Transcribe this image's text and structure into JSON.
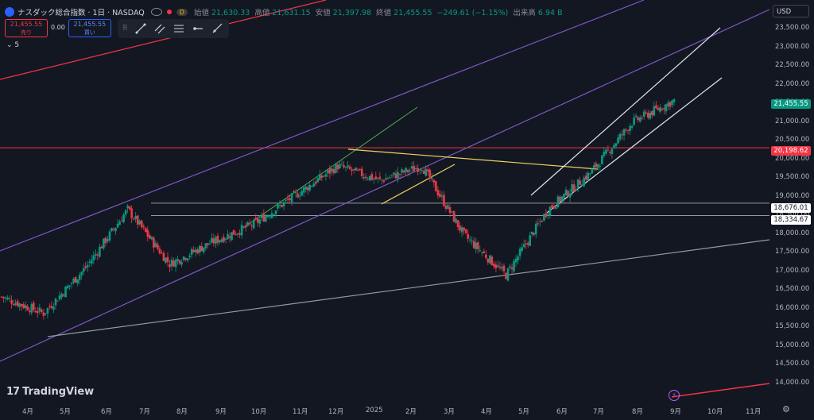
{
  "header": {
    "title": "ナスダック総合指数 · 1日 · NASDAQ",
    "badge": "D",
    "open_label": "始値",
    "open": "21,630.33",
    "high_label": "高値",
    "high": "21,631.15",
    "low_label": "安値",
    "low": "21,397.98",
    "close_label": "終値",
    "close": "21,455.55",
    "change": "−249.61 (−1.15%)",
    "volume_label": "出来高",
    "volume": "6.94 B"
  },
  "trade": {
    "sell_price": "21,455.55",
    "sell_label": "売り",
    "spread": "0.00",
    "buy_price": "21,455.55",
    "buy_label": "買い"
  },
  "indicator_collapse": "5",
  "currency": "USD",
  "y_axis_labels": [
    "23,500.00",
    "23,000.00",
    "22,500.00",
    "22,000.00",
    "21,500.00",
    "21,000.00",
    "20,500.00",
    "20,000.00",
    "19,500.00",
    "19,000.00",
    "18,500.00",
    "18,000.00",
    "17,500.00",
    "17,000.00",
    "16,500.00",
    "16,000.00",
    "15,500.00",
    "15,000.00",
    "14,500.00",
    "14,000.00"
  ],
  "x_axis_labels": [
    "4月",
    "5月",
    "6月",
    "7月",
    "8月",
    "9月",
    "10月",
    "11月",
    "12月",
    "2025",
    "2月",
    "3月",
    "4月",
    "5月",
    "6月",
    "7月",
    "8月",
    "9月",
    "10月",
    "11月"
  ],
  "price_badges": {
    "last": "21,455.55",
    "resistance": "20,198.62",
    "level1": "18,676.01",
    "level2": "18,334.67"
  },
  "brand": "TradingView",
  "colors": {
    "up": "#089981",
    "down": "#f23645",
    "background": "#131722",
    "accent": "#2962ff"
  },
  "chart_data": {
    "type": "candlestick",
    "ylim": [
      13700,
      23700
    ],
    "x_axis": [
      "4月",
      "5月",
      "6月",
      "7月",
      "8月",
      "9月",
      "10月",
      "11月",
      "12月",
      "2025",
      "2月",
      "3月",
      "4月",
      "5月",
      "6月",
      "7月",
      "8月",
      "9月",
      "10月",
      "11月"
    ],
    "closes_by_month": [
      {
        "month": "4月",
        "close": 16100
      },
      {
        "month": "5月",
        "close": 15650
      },
      {
        "month": "6月",
        "close": 16900
      },
      {
        "month": "7月",
        "close": 18500
      },
      {
        "month": "8月",
        "close": 17000
      },
      {
        "month": "9月",
        "close": 17600
      },
      {
        "month": "10月",
        "close": 18100
      },
      {
        "month": "11月",
        "close": 18900
      },
      {
        "month": "12月",
        "close": 19700
      },
      {
        "month": "2025",
        "close": 19300
      },
      {
        "month": "2月",
        "close": 19700
      },
      {
        "month": "3月",
        "close": 17800
      },
      {
        "month": "4月",
        "close": 16700
      },
      {
        "month": "5月",
        "close": 18500
      },
      {
        "month": "6月",
        "close": 19500
      },
      {
        "month": "7月",
        "close": 20900
      },
      {
        "month": "8月",
        "close": 21500
      }
    ],
    "last_price": 21455.55,
    "horizontal_levels": [
      20198.62,
      18676.01,
      18334.67
    ]
  }
}
